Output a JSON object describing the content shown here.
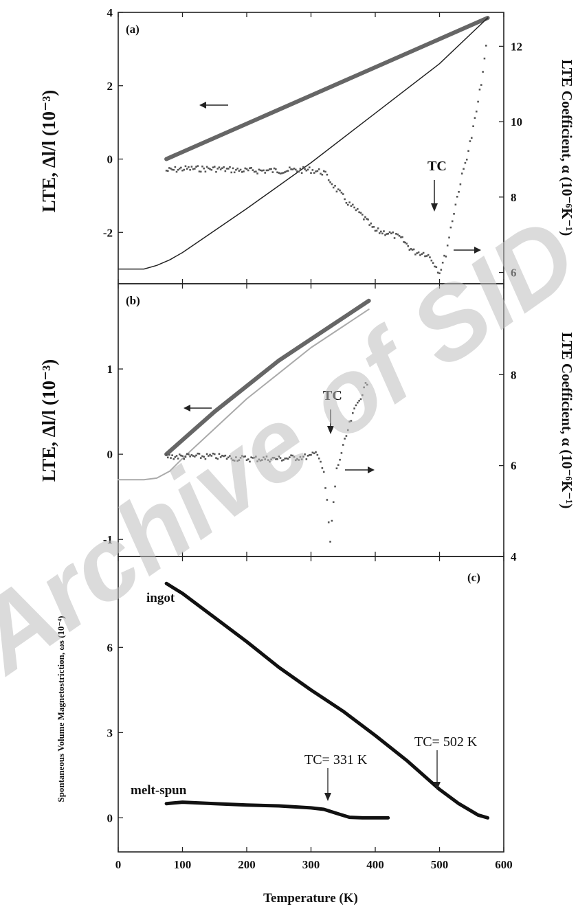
{
  "watermark": "Archive of SID",
  "xlabel": "Temperature (K)",
  "x_ticks": [
    "0",
    "100",
    "200",
    "300",
    "400",
    "500",
    "600"
  ],
  "panel_a": {
    "label": "(a)",
    "ylabel_left": "LTE, Δl/l (10⁻³)",
    "ylabel_right": "LTE Coefficient, α (10⁻⁶K⁻¹)",
    "yticks_left": [
      "4",
      "2",
      "0",
      "-2"
    ],
    "yticks_right": [
      "12",
      "10",
      "8",
      "6"
    ],
    "tc_label": "TC"
  },
  "panel_b": {
    "label": "(b)",
    "ylabel_left": "LTE, Δl/l (10⁻³)",
    "ylabel_right": "LTE Coefficient, α (10⁻⁶K⁻¹)",
    "yticks_left": [
      "1",
      "0",
      "-1"
    ],
    "yticks_right": [
      "8",
      "6",
      "4"
    ],
    "tc_label": "TC"
  },
  "panel_c": {
    "label": "(c)",
    "ylabel": "Spontaneous Volume Magnetostriction, ωs (10⁻⁴)",
    "yticks": [
      "6",
      "3",
      "0"
    ],
    "ingot_label": "ingot",
    "meltspun_label": "melt-spun",
    "tc_ingot": "TC= 502 K",
    "tc_meltspun": "TC= 331 K"
  },
  "chart_data": [
    {
      "type": "line",
      "title": "(a)",
      "xlabel": "",
      "ylabel": "LTE, Δl/l (10⁻³)",
      "y2label": "LTE Coefficient, α (10⁻⁶K⁻¹)",
      "xlim": [
        0,
        600
      ],
      "ylim": [
        -3.4,
        4
      ],
      "y2lim": [
        5.7,
        12.9
      ],
      "series": [
        {
          "axis": "left",
          "style": "thick",
          "x": [
            75,
            575
          ],
          "y": [
            0.0,
            3.85
          ]
        },
        {
          "axis": "left",
          "style": "thin",
          "x": [
            0,
            40,
            60,
            80,
            100,
            150,
            200,
            300,
            400,
            500,
            575
          ],
          "y": [
            -3.0,
            -3.0,
            -2.9,
            -2.75,
            -2.55,
            -1.95,
            -1.35,
            -0.1,
            1.25,
            2.6,
            3.85
          ]
        },
        {
          "axis": "right",
          "style": "points",
          "x": [
            75,
            100,
            150,
            200,
            250,
            300,
            320,
            340,
            360,
            380,
            400,
            420,
            440,
            460,
            480,
            490,
            500,
            510,
            520,
            530,
            540,
            550,
            560,
            570,
            575
          ],
          "y": [
            8.7,
            8.75,
            8.75,
            8.7,
            8.7,
            8.72,
            8.65,
            8.2,
            7.8,
            7.5,
            7.1,
            7.05,
            6.9,
            6.55,
            6.5,
            6.3,
            6.0,
            6.5,
            7.4,
            8.2,
            8.9,
            9.6,
            10.5,
            11.6,
            12.4
          ]
        }
      ]
    },
    {
      "type": "line",
      "title": "(b)",
      "xlabel": "",
      "ylabel": "LTE, Δl/l (10⁻³)",
      "y2label": "LTE Coefficient, α (10⁻⁶K⁻¹)",
      "xlim": [
        0,
        600
      ],
      "ylim": [
        -1.2,
        2.0
      ],
      "y2lim": [
        4,
        10
      ],
      "series": [
        {
          "axis": "left",
          "style": "thick",
          "x": [
            75,
            150,
            250,
            330,
            390
          ],
          "y": [
            0.0,
            0.5,
            1.1,
            1.5,
            1.8
          ]
        },
        {
          "axis": "left",
          "style": "thin-gray",
          "x": [
            0,
            40,
            60,
            80,
            100,
            150,
            200,
            250,
            300,
            350,
            390
          ],
          "y": [
            -0.3,
            -0.3,
            -0.28,
            -0.2,
            -0.05,
            0.3,
            0.65,
            0.95,
            1.25,
            1.5,
            1.7
          ]
        },
        {
          "axis": "right",
          "style": "points",
          "x": [
            75,
            100,
            150,
            200,
            250,
            300,
            310,
            315,
            320,
            325,
            330,
            335,
            340,
            350,
            360,
            370,
            380,
            390
          ],
          "y": [
            6.2,
            6.2,
            6.2,
            6.15,
            6.15,
            6.2,
            6.3,
            6.1,
            5.8,
            5.2,
            4.3,
            5.2,
            5.9,
            6.4,
            6.9,
            7.3,
            7.6,
            7.9
          ]
        }
      ]
    },
    {
      "type": "line",
      "title": "(c)",
      "xlabel": "Temperature (K)",
      "ylabel": "Spontaneous Volume Magnetostriction, ωs (10⁻⁴)",
      "xlim": [
        0,
        600
      ],
      "ylim": [
        -1.2,
        9.2
      ],
      "series": [
        {
          "name": "ingot",
          "x": [
            75,
            100,
            150,
            200,
            250,
            300,
            350,
            400,
            450,
            500,
            530,
            560,
            575
          ],
          "y": [
            8.25,
            7.9,
            7.05,
            6.2,
            5.3,
            4.5,
            3.75,
            2.9,
            2.0,
            1.0,
            0.5,
            0.1,
            0.0
          ]
        },
        {
          "name": "melt-spun",
          "x": [
            75,
            100,
            150,
            200,
            250,
            300,
            320,
            331,
            345,
            360,
            380,
            400,
            420
          ],
          "y": [
            0.5,
            0.55,
            0.5,
            0.45,
            0.42,
            0.35,
            0.3,
            0.22,
            0.12,
            0.02,
            0.0,
            0.0,
            0.0
          ]
        }
      ]
    }
  ]
}
